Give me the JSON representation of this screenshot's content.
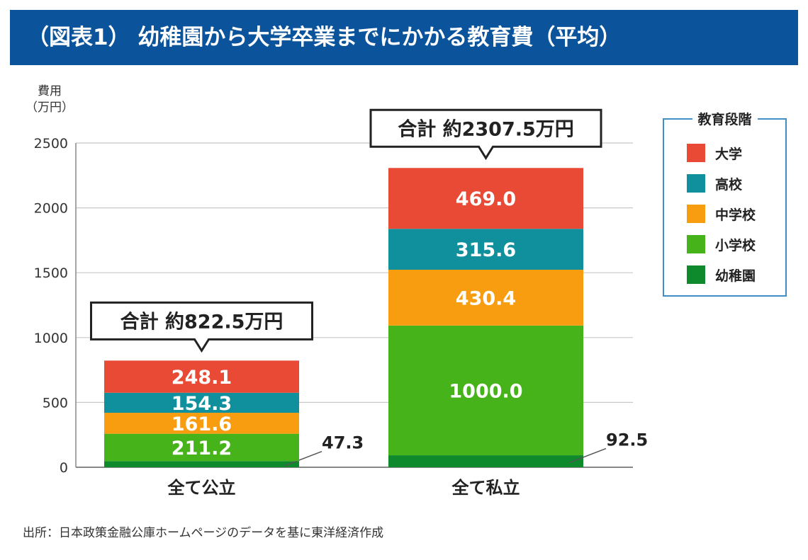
{
  "title": "（図表1） 幼稚園から大学卒業までにかかる教育費（平均）",
  "source": "出所：日本政策金融公庫ホームページのデータを基に東洋経済作成",
  "colors": {
    "title_bar": "#0b539a",
    "幼稚園": "#0e8a2c",
    "小学校": "#45b319",
    "中学校": "#f99d10",
    "高校": "#10909c",
    "大学": "#e84a35",
    "legend_border": "#3f8fc6"
  },
  "chart_data": {
    "type": "bar",
    "stacked": true,
    "title": "（図表1） 幼稚園から大学卒業までにかかる教育費（平均）",
    "ylabel": "費用\n（万円）",
    "ylabel_lines": [
      "費用",
      "（万円）"
    ],
    "ylim": [
      0,
      2500
    ],
    "yticks": [
      0,
      500,
      1000,
      1500,
      2000,
      2500
    ],
    "grid": true,
    "categories": [
      "全て公立",
      "全て私立"
    ],
    "series": [
      {
        "name": "幼稚園",
        "values": [
          47.3,
          92.5
        ]
      },
      {
        "name": "小学校",
        "values": [
          211.2,
          1000.0
        ]
      },
      {
        "name": "中学校",
        "values": [
          161.6,
          430.4
        ]
      },
      {
        "name": "高校",
        "values": [
          154.3,
          315.6
        ]
      },
      {
        "name": "大学",
        "values": [
          248.1,
          469.0
        ]
      }
    ],
    "data_labels": [
      [
        "47.3",
        "211.2",
        "161.6",
        "154.3",
        "248.1"
      ],
      [
        "92.5",
        "1000.0",
        "430.4",
        "315.6",
        "469.0"
      ]
    ],
    "totals": [
      822.5,
      2307.5
    ],
    "total_labels": [
      "合計 約822.5万円",
      "合計 約2307.5万円"
    ],
    "legend_title": "教育段階",
    "legend_order": [
      "大学",
      "高校",
      "中学校",
      "小学校",
      "幼稚園"
    ],
    "legend_position": "top-right"
  }
}
